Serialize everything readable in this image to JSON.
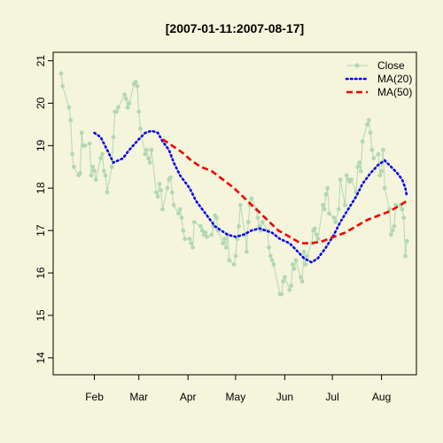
{
  "chart_data": {
    "type": "line",
    "title": "[2007-01-11:2007-08-17]",
    "xlabel": "",
    "ylabel": "",
    "ylim": [
      13.6,
      21.2
    ],
    "yticks": [
      14,
      15,
      16,
      17,
      18,
      19,
      20,
      21
    ],
    "xticks": [
      {
        "label": "Feb",
        "date": "2007-02-01"
      },
      {
        "label": "Mar",
        "date": "2007-03-01"
      },
      {
        "label": "Apr",
        "date": "2007-04-01"
      },
      {
        "label": "May",
        "date": "2007-05-01"
      },
      {
        "label": "Jun",
        "date": "2007-06-01"
      },
      {
        "label": "Jul",
        "date": "2007-07-01"
      },
      {
        "label": "Aug",
        "date": "2007-08-01"
      }
    ],
    "xlim": [
      "2007-01-06",
      "2007-08-23"
    ],
    "grid": false,
    "legend": "top-right",
    "series": [
      {
        "name": "Close",
        "color": "#B2D8B2",
        "style": "line-with-points",
        "points": [
          [
            "2007-01-11",
            20.7
          ],
          [
            "2007-01-12",
            20.4
          ],
          [
            "2007-01-16",
            19.9
          ],
          [
            "2007-01-17",
            19.6
          ],
          [
            "2007-01-18",
            18.8
          ],
          [
            "2007-01-19",
            18.5
          ],
          [
            "2007-01-22",
            18.3
          ],
          [
            "2007-01-23",
            18.35
          ],
          [
            "2007-01-24",
            19.3
          ],
          [
            "2007-01-25",
            19.0
          ],
          [
            "2007-01-26",
            19.0
          ],
          [
            "2007-01-29",
            19.05
          ],
          [
            "2007-01-30",
            18.3
          ],
          [
            "2007-01-31",
            18.5
          ],
          [
            "2007-02-01",
            18.4
          ],
          [
            "2007-02-02",
            18.2
          ],
          [
            "2007-02-05",
            18.7
          ],
          [
            "2007-02-06",
            18.8
          ],
          [
            "2007-02-07",
            18.4
          ],
          [
            "2007-02-08",
            18.3
          ],
          [
            "2007-02-09",
            17.9
          ],
          [
            "2007-02-12",
            18.5
          ],
          [
            "2007-02-13",
            19.2
          ],
          [
            "2007-02-14",
            19.8
          ],
          [
            "2007-02-15",
            19.8
          ],
          [
            "2007-02-16",
            19.9
          ],
          [
            "2007-02-20",
            20.2
          ],
          [
            "2007-02-21",
            20.1
          ],
          [
            "2007-02-22",
            19.9
          ],
          [
            "2007-02-23",
            20.0
          ],
          [
            "2007-02-26",
            20.45
          ],
          [
            "2007-02-27",
            20.5
          ],
          [
            "2007-02-28",
            20.4
          ],
          [
            "2007-03-01",
            19.8
          ],
          [
            "2007-03-02",
            19.4
          ],
          [
            "2007-03-05",
            18.8
          ],
          [
            "2007-03-06",
            18.9
          ],
          [
            "2007-03-07",
            18.7
          ],
          [
            "2007-03-08",
            18.6
          ],
          [
            "2007-03-09",
            18.9
          ],
          [
            "2007-03-12",
            17.9
          ],
          [
            "2007-03-13",
            17.8
          ],
          [
            "2007-03-14",
            18.1
          ],
          [
            "2007-03-15",
            17.95
          ],
          [
            "2007-03-16",
            17.5
          ],
          [
            "2007-03-19",
            18.0
          ],
          [
            "2007-03-20",
            18.2
          ],
          [
            "2007-03-21",
            18.25
          ],
          [
            "2007-03-22",
            17.9
          ],
          [
            "2007-03-23",
            17.6
          ],
          [
            "2007-03-26",
            17.4
          ],
          [
            "2007-03-27",
            17.5
          ],
          [
            "2007-03-28",
            17.3
          ],
          [
            "2007-03-29",
            17.0
          ],
          [
            "2007-03-30",
            16.8
          ],
          [
            "2007-04-02",
            16.8
          ],
          [
            "2007-04-03",
            16.7
          ],
          [
            "2007-04-04",
            16.6
          ],
          [
            "2007-04-05",
            17.2
          ],
          [
            "2007-04-09",
            17.1
          ],
          [
            "2007-04-10",
            17.0
          ],
          [
            "2007-04-11",
            16.9
          ],
          [
            "2007-04-12",
            16.95
          ],
          [
            "2007-04-13",
            16.85
          ],
          [
            "2007-04-16",
            16.9
          ],
          [
            "2007-04-17",
            17.1
          ],
          [
            "2007-04-18",
            17.35
          ],
          [
            "2007-04-19",
            17.3
          ],
          [
            "2007-04-20",
            17.0
          ],
          [
            "2007-04-23",
            16.7
          ],
          [
            "2007-04-24",
            16.8
          ],
          [
            "2007-04-25",
            16.6
          ],
          [
            "2007-04-26",
            16.9
          ],
          [
            "2007-04-27",
            16.3
          ],
          [
            "2007-04-30",
            16.2
          ],
          [
            "2007-05-01",
            16.4
          ],
          [
            "2007-05-02",
            16.8
          ],
          [
            "2007-05-03",
            17.1
          ],
          [
            "2007-05-04",
            17.6
          ],
          [
            "2007-05-07",
            16.9
          ],
          [
            "2007-05-08",
            16.5
          ],
          [
            "2007-05-09",
            17.2
          ],
          [
            "2007-05-10",
            17.6
          ],
          [
            "2007-05-11",
            17.75
          ],
          [
            "2007-05-14",
            17.5
          ],
          [
            "2007-05-15",
            17.3
          ],
          [
            "2007-05-16",
            17.1
          ],
          [
            "2007-05-17",
            17.0
          ],
          [
            "2007-05-18",
            17.2
          ],
          [
            "2007-05-21",
            17.0
          ],
          [
            "2007-05-22",
            16.6
          ],
          [
            "2007-05-23",
            16.4
          ],
          [
            "2007-05-24",
            16.3
          ],
          [
            "2007-05-25",
            16.2
          ],
          [
            "2007-05-29",
            15.5
          ],
          [
            "2007-05-30",
            15.5
          ],
          [
            "2007-05-31",
            15.8
          ],
          [
            "2007-06-01",
            15.9
          ],
          [
            "2007-06-04",
            15.6
          ],
          [
            "2007-06-05",
            15.7
          ],
          [
            "2007-06-06",
            16.2
          ],
          [
            "2007-06-07",
            16.1
          ],
          [
            "2007-06-08",
            16.3
          ],
          [
            "2007-06-11",
            15.9
          ],
          [
            "2007-06-12",
            15.8
          ],
          [
            "2007-06-13",
            16.5
          ],
          [
            "2007-06-14",
            16.2
          ],
          [
            "2007-06-15",
            16.4
          ],
          [
            "2007-06-18",
            16.7
          ],
          [
            "2007-06-19",
            17.0
          ],
          [
            "2007-06-20",
            17.05
          ],
          [
            "2007-06-21",
            16.9
          ],
          [
            "2007-06-22",
            16.8
          ],
          [
            "2007-06-25",
            17.6
          ],
          [
            "2007-06-26",
            17.5
          ],
          [
            "2007-06-27",
            17.85
          ],
          [
            "2007-06-28",
            18.0
          ],
          [
            "2007-06-29",
            17.4
          ],
          [
            "2007-07-02",
            17.3
          ],
          [
            "2007-07-03",
            17.2
          ],
          [
            "2007-07-05",
            17.5
          ],
          [
            "2007-07-06",
            18.2
          ],
          [
            "2007-07-09",
            17.6
          ],
          [
            "2007-07-10",
            18.3
          ],
          [
            "2007-07-11",
            18.2
          ],
          [
            "2007-07-12",
            18.15
          ],
          [
            "2007-07-13",
            18.2
          ],
          [
            "2007-07-16",
            17.9
          ],
          [
            "2007-07-17",
            18.5
          ],
          [
            "2007-07-18",
            18.6
          ],
          [
            "2007-07-19",
            18.4
          ],
          [
            "2007-07-20",
            19.1
          ],
          [
            "2007-07-23",
            19.5
          ],
          [
            "2007-07-24",
            19.6
          ],
          [
            "2007-07-25",
            19.3
          ],
          [
            "2007-07-26",
            18.9
          ],
          [
            "2007-07-27",
            18.7
          ],
          [
            "2007-07-30",
            18.8
          ],
          [
            "2007-07-31",
            18.3
          ],
          [
            "2007-08-01",
            18.4
          ],
          [
            "2007-08-02",
            18.9
          ],
          [
            "2007-08-03",
            18.0
          ],
          [
            "2007-08-06",
            17.5
          ],
          [
            "2007-08-07",
            16.9
          ],
          [
            "2007-08-08",
            17.0
          ],
          [
            "2007-08-09",
            17.1
          ],
          [
            "2007-08-10",
            17.6
          ],
          [
            "2007-08-13",
            17.6
          ],
          [
            "2007-08-14",
            17.5
          ],
          [
            "2007-08-15",
            17.3
          ],
          [
            "2007-08-16",
            16.4
          ],
          [
            "2007-08-17",
            16.75
          ]
        ]
      },
      {
        "name": "MA(20)",
        "color": "#0000EE",
        "style": "dotted",
        "points": [
          [
            "2007-02-01",
            19.3
          ],
          [
            "2007-02-05",
            19.2
          ],
          [
            "2007-02-09",
            18.9
          ],
          [
            "2007-02-13",
            18.6
          ],
          [
            "2007-02-19",
            18.7
          ],
          [
            "2007-02-23",
            18.9
          ],
          [
            "2007-03-01",
            19.15
          ],
          [
            "2007-03-05",
            19.3
          ],
          [
            "2007-03-09",
            19.35
          ],
          [
            "2007-03-13",
            19.3
          ],
          [
            "2007-03-16",
            19.1
          ],
          [
            "2007-03-20",
            18.9
          ],
          [
            "2007-03-23",
            18.6
          ],
          [
            "2007-03-27",
            18.3
          ],
          [
            "2007-04-02",
            18.0
          ],
          [
            "2007-04-06",
            17.7
          ],
          [
            "2007-04-10",
            17.5
          ],
          [
            "2007-04-14",
            17.3
          ],
          [
            "2007-04-18",
            17.1
          ],
          [
            "2007-04-22",
            17.0
          ],
          [
            "2007-04-26",
            16.9
          ],
          [
            "2007-05-01",
            16.85
          ],
          [
            "2007-05-06",
            16.9
          ],
          [
            "2007-05-11",
            17.0
          ],
          [
            "2007-05-16",
            17.05
          ],
          [
            "2007-05-20",
            17.0
          ],
          [
            "2007-05-24",
            16.95
          ],
          [
            "2007-05-29",
            16.8
          ],
          [
            "2007-06-04",
            16.7
          ],
          [
            "2007-06-08",
            16.55
          ],
          [
            "2007-06-13",
            16.35
          ],
          [
            "2007-06-18",
            16.25
          ],
          [
            "2007-06-22",
            16.35
          ],
          [
            "2007-06-27",
            16.6
          ],
          [
            "2007-07-02",
            16.9
          ],
          [
            "2007-07-06",
            17.2
          ],
          [
            "2007-07-11",
            17.5
          ],
          [
            "2007-07-16",
            17.8
          ],
          [
            "2007-07-20",
            18.1
          ],
          [
            "2007-07-25",
            18.35
          ],
          [
            "2007-07-30",
            18.55
          ],
          [
            "2007-08-03",
            18.65
          ],
          [
            "2007-08-07",
            18.5
          ],
          [
            "2007-08-11",
            18.35
          ],
          [
            "2007-08-14",
            18.2
          ],
          [
            "2007-08-16",
            18.0
          ],
          [
            "2007-08-17",
            17.8
          ]
        ]
      },
      {
        "name": "MA(50)",
        "color": "#EE0000",
        "style": "dashed",
        "points": [
          [
            "2007-03-16",
            19.15
          ],
          [
            "2007-03-22",
            19.0
          ],
          [
            "2007-03-28",
            18.85
          ],
          [
            "2007-04-03",
            18.65
          ],
          [
            "2007-04-09",
            18.5
          ],
          [
            "2007-04-16",
            18.4
          ],
          [
            "2007-04-23",
            18.2
          ],
          [
            "2007-04-30",
            18.0
          ],
          [
            "2007-05-07",
            17.75
          ],
          [
            "2007-05-14",
            17.5
          ],
          [
            "2007-05-21",
            17.25
          ],
          [
            "2007-05-28",
            17.0
          ],
          [
            "2007-06-04",
            16.85
          ],
          [
            "2007-06-11",
            16.7
          ],
          [
            "2007-06-18",
            16.7
          ],
          [
            "2007-06-25",
            16.75
          ],
          [
            "2007-07-02",
            16.85
          ],
          [
            "2007-07-09",
            16.95
          ],
          [
            "2007-07-16",
            17.1
          ],
          [
            "2007-07-23",
            17.25
          ],
          [
            "2007-07-30",
            17.35
          ],
          [
            "2007-08-06",
            17.45
          ],
          [
            "2007-08-13",
            17.6
          ],
          [
            "2007-08-17",
            17.7
          ]
        ]
      }
    ]
  }
}
